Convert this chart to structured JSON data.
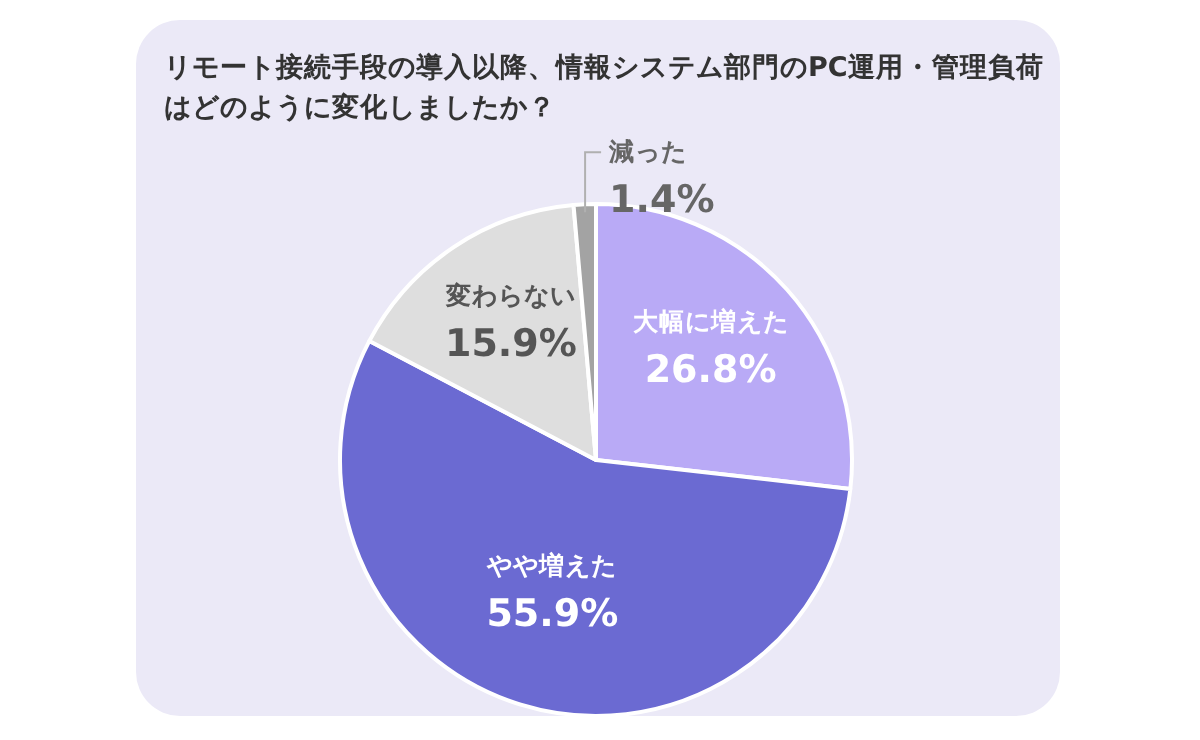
{
  "chart_data": {
    "type": "pie",
    "title": "リモート接続手段の導入以降、情報システム部門のPC運用・管理負荷はどのように変化しましたか？",
    "categories": [
      "大幅に増えた",
      "やや増えた",
      "変わらない",
      "減った"
    ],
    "values": [
      26.8,
      55.9,
      15.9,
      1.4
    ],
    "value_labels": [
      "26.8%",
      "55.9%",
      "15.9%",
      "1.4%"
    ],
    "colors": [
      "#b9aaf6",
      "#6b6ad2",
      "#dedede",
      "#a3a3a3"
    ]
  }
}
